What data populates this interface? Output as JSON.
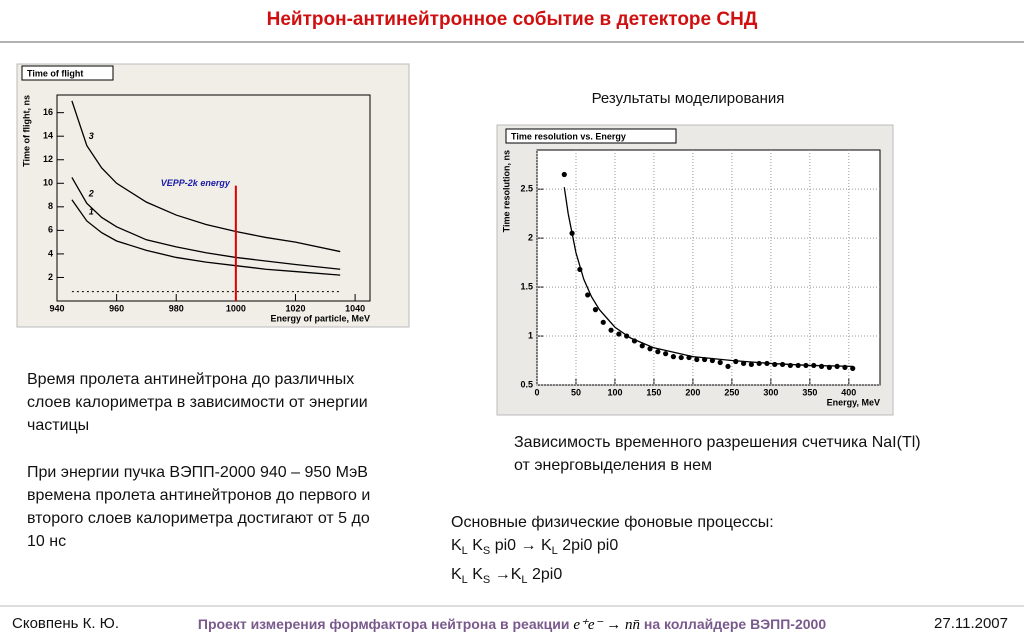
{
  "title": "Нейтрон-антинейтронное событие в детекторе СНД",
  "chart_data": [
    {
      "type": "line",
      "title": "Time of flight",
      "xlabel": "Energy of particle, MeV",
      "ylabel": "Time of flight, ns",
      "xlim": [
        940,
        1045
      ],
      "ylim": [
        0,
        17.5
      ],
      "xticks": [
        940,
        960,
        980,
        1000,
        1020,
        1040
      ],
      "yticks": [
        2,
        4,
        6,
        8,
        10,
        12,
        14,
        16
      ],
      "x": [
        945,
        950,
        955,
        960,
        970,
        980,
        990,
        1000,
        1010,
        1020,
        1035
      ],
      "series": [
        {
          "name": "1",
          "color": "#000000",
          "values": [
            8.6,
            6.8,
            5.8,
            5.1,
            4.3,
            3.7,
            3.3,
            3.0,
            2.7,
            2.5,
            2.2
          ]
        },
        {
          "name": "2",
          "color": "#000000",
          "values": [
            10.5,
            8.3,
            7.1,
            6.3,
            5.2,
            4.6,
            4.1,
            3.7,
            3.4,
            3.1,
            2.7
          ]
        },
        {
          "name": "3",
          "color": "#000000",
          "values": [
            17,
            13.2,
            11.3,
            10,
            8.4,
            7.3,
            6.5,
            5.9,
            5.4,
            5.0,
            4.2
          ]
        },
        {
          "color": "#000000",
          "dash": true,
          "values": [
            0.8,
            0.8,
            0.8,
            0.8,
            0.8,
            0.8,
            0.8,
            0.8,
            0.8,
            0.8,
            0.8
          ]
        }
      ],
      "annotation": {
        "text": "VEPP-2k energy",
        "x": 1000,
        "y": 9.8,
        "color": "#e00000",
        "text_color": "#1a1aa8"
      }
    },
    {
      "type": "scatter",
      "title": "Time resolution vs. Energy",
      "xlabel": "Energy, MeV",
      "ylabel": "Time resolution, ns",
      "xlim": [
        0,
        440
      ],
      "ylim": [
        0.5,
        2.9
      ],
      "grid": true,
      "xticks": [
        0,
        50,
        100,
        150,
        200,
        250,
        300,
        350,
        400
      ],
      "yticks": [
        0.5,
        1,
        1.5,
        2,
        2.5
      ],
      "series": [
        {
          "color": "#000000",
          "x": [
            35,
            45,
            55,
            65,
            75,
            85,
            95,
            105,
            115,
            125,
            135,
            145,
            155,
            165,
            175,
            185,
            195,
            205,
            215,
            225,
            235,
            245,
            255,
            265,
            275,
            285,
            295,
            305,
            315,
            325,
            335,
            345,
            355,
            365,
            375,
            385,
            395,
            405
          ],
          "values": [
            2.65,
            2.05,
            1.68,
            1.42,
            1.27,
            1.14,
            1.06,
            1.02,
            1.0,
            0.95,
            0.9,
            0.87,
            0.84,
            0.82,
            0.79,
            0.78,
            0.78,
            0.76,
            0.76,
            0.75,
            0.73,
            0.69,
            0.74,
            0.72,
            0.71,
            0.72,
            0.72,
            0.71,
            0.71,
            0.7,
            0.7,
            0.7,
            0.7,
            0.69,
            0.68,
            0.69,
            0.68,
            0.67
          ]
        },
        {
          "color": "#000000",
          "line": true,
          "x": [
            35,
            40,
            50,
            60,
            70,
            80,
            100,
            120,
            150,
            200,
            250,
            300,
            350,
            405
          ],
          "values": [
            2.52,
            2.25,
            1.85,
            1.58,
            1.4,
            1.27,
            1.09,
            0.98,
            0.88,
            0.79,
            0.75,
            0.72,
            0.7,
            0.69
          ]
        }
      ]
    }
  ],
  "sim_caption": "Результаты моделирования",
  "left_text": [
    "Время пролета антинейтрона до различных слоев калориметра в зависимости от энергии частицы",
    "При энергии пучка ВЭПП-2000 940 – 950 МэВ времена пролета антинейтронов до первого и второго слоев калориметра достигают от 5 до 10 нс"
  ],
  "right_caption": "Зависимость временного разрешения счетчика NaI(Tl) от энерговыделения в нем",
  "processes": {
    "heading": "Основные физические фоновые процессы:",
    "lines": [
      [
        "K",
        "L",
        " K",
        "S",
        " pi0 → K",
        "L",
        " 2pi0 pi0"
      ],
      [
        "K",
        "L",
        " K",
        "S",
        " →K",
        "L",
        " 2pi0"
      ]
    ]
  },
  "footer": {
    "author": "Сковпень К. Ю.",
    "project": [
      "Проект измерения формфактора нейтрона в реакции",
      "e⁺e⁻ → nn̄",
      "на коллайдере ВЭПП-2000"
    ],
    "date": "27.11.2007"
  }
}
